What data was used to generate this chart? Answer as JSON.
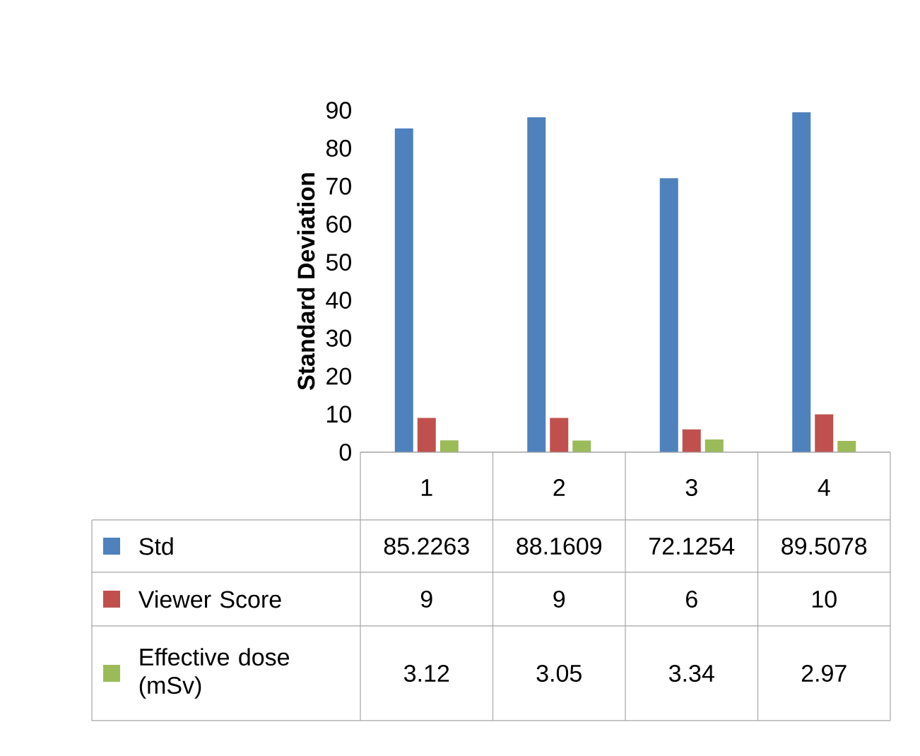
{
  "chart_data": {
    "type": "bar",
    "ylabel": "Standard Deviation",
    "categories": [
      "1",
      "2",
      "3",
      "4"
    ],
    "series": [
      {
        "name": "Std",
        "color": "#4f81bd",
        "values": [
          85.2263,
          88.1609,
          72.1254,
          89.5078
        ]
      },
      {
        "name": "Viewer Score",
        "color": "#c0504d",
        "values": [
          9,
          9,
          6,
          10
        ]
      },
      {
        "name": "Effective dose (mSv)",
        "color": "#9bbb59",
        "values": [
          3.12,
          3.05,
          3.34,
          2.97
        ]
      }
    ],
    "ylim": [
      0,
      90
    ],
    "yticks": [
      0,
      10,
      20,
      30,
      40,
      50,
      60,
      70,
      80,
      90
    ],
    "data_labels": true,
    "legend": "bottom"
  }
}
